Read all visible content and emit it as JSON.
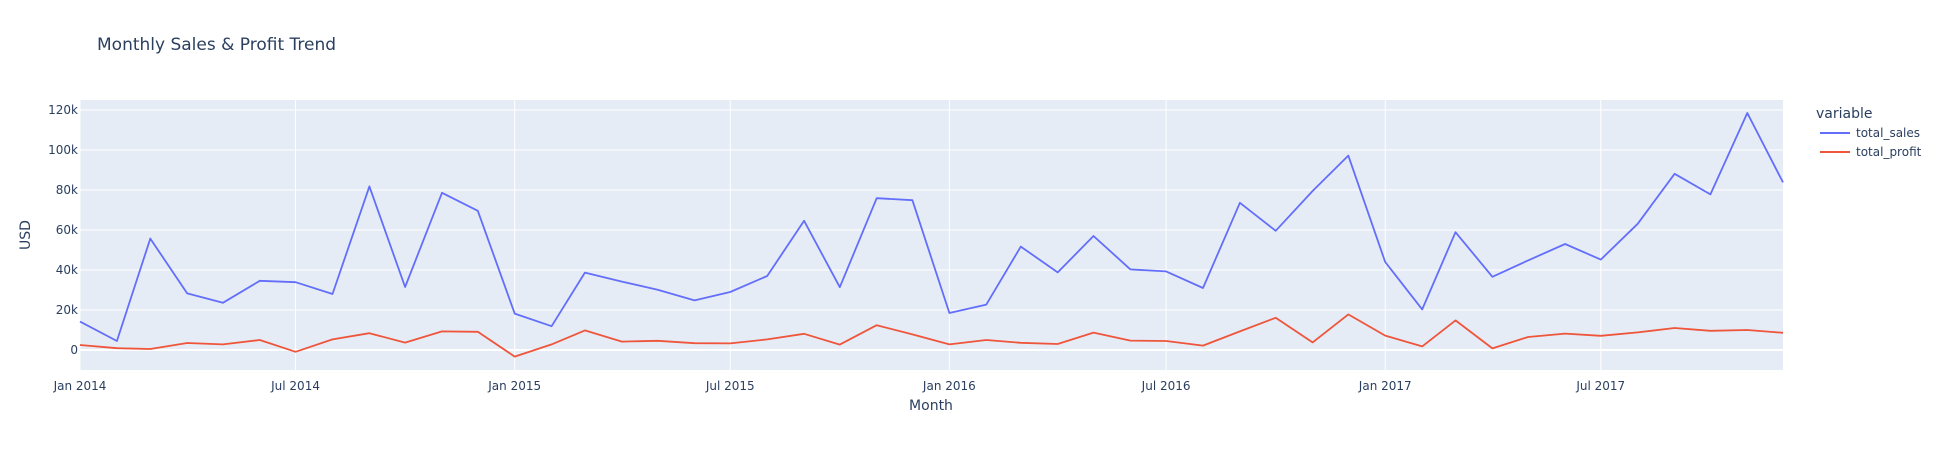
{
  "chart_data": {
    "type": "line",
    "title": "Monthly Sales & Profit Trend",
    "xlabel": "Month",
    "ylabel": "USD",
    "xlim": [
      "2014-01-01",
      "2017-12-01"
    ],
    "ylim": [
      -10000,
      125000
    ],
    "x_ticks": [
      {
        "date": "2014-01-01",
        "label": "Jan 2014"
      },
      {
        "date": "2014-07-01",
        "label": "Jul 2014"
      },
      {
        "date": "2015-01-01",
        "label": "Jan 2015"
      },
      {
        "date": "2015-07-01",
        "label": "Jul 2015"
      },
      {
        "date": "2016-01-01",
        "label": "Jan 2016"
      },
      {
        "date": "2016-07-01",
        "label": "Jul 2016"
      },
      {
        "date": "2017-01-01",
        "label": "Jan 2017"
      },
      {
        "date": "2017-07-01",
        "label": "Jul 2017"
      }
    ],
    "y_ticks": [
      {
        "value": 0,
        "label": "0"
      },
      {
        "value": 20000,
        "label": "20k"
      },
      {
        "value": 40000,
        "label": "40k"
      },
      {
        "value": 60000,
        "label": "60k"
      },
      {
        "value": 80000,
        "label": "80k"
      },
      {
        "value": 100000,
        "label": "100k"
      },
      {
        "value": 120000,
        "label": "120k"
      }
    ],
    "grid": true,
    "legend": {
      "title": "variable",
      "placement": "right"
    },
    "x": [
      "2014-01-01",
      "2014-02-01",
      "2014-03-01",
      "2014-04-01",
      "2014-05-01",
      "2014-06-01",
      "2014-07-01",
      "2014-08-01",
      "2014-09-01",
      "2014-10-01",
      "2014-11-01",
      "2014-12-01",
      "2015-01-01",
      "2015-02-01",
      "2015-03-01",
      "2015-04-01",
      "2015-05-01",
      "2015-06-01",
      "2015-07-01",
      "2015-08-01",
      "2015-09-01",
      "2015-10-01",
      "2015-11-01",
      "2015-12-01",
      "2016-01-01",
      "2016-02-01",
      "2016-03-01",
      "2016-04-01",
      "2016-05-01",
      "2016-06-01",
      "2016-07-01",
      "2016-08-01",
      "2016-09-01",
      "2016-10-01",
      "2016-11-01",
      "2016-12-01",
      "2017-01-01",
      "2017-02-01",
      "2017-03-01",
      "2017-04-01",
      "2017-05-01",
      "2017-06-01",
      "2017-07-01",
      "2017-08-01",
      "2017-09-01",
      "2017-10-01",
      "2017-11-01",
      "2017-12-01"
    ],
    "series": [
      {
        "name": "total_sales",
        "color": "#636efa",
        "values": [
          14200,
          4500,
          55700,
          28300,
          23600,
          34600,
          33900,
          28000,
          81800,
          31500,
          78600,
          69600,
          18200,
          11900,
          38700,
          34200,
          30100,
          24800,
          29000,
          37000,
          64600,
          31400,
          75900,
          74900,
          18500,
          22700,
          51700,
          38800,
          57000,
          40300,
          39300,
          31000,
          73600,
          59600,
          79500,
          97200,
          44000,
          20300,
          58900,
          36600,
          44800,
          53000,
          45200,
          63100,
          88100,
          77800,
          118500,
          83800
        ]
      },
      {
        "name": "total_profit",
        "color": "#ef553b",
        "values": [
          2500,
          900,
          500,
          3500,
          2800,
          5000,
          -900,
          5300,
          8400,
          3700,
          9300,
          9100,
          -3300,
          2800,
          9800,
          4200,
          4600,
          3400,
          3300,
          5300,
          8100,
          2700,
          12400,
          7800,
          2800,
          5000,
          3600,
          3000,
          8700,
          4700,
          4500,
          2200,
          9300,
          16100,
          3800,
          17800,
          7200,
          1800,
          14800,
          800,
          6500,
          8200,
          7100,
          8800,
          11000,
          9600,
          10000,
          8600
        ]
      }
    ]
  }
}
